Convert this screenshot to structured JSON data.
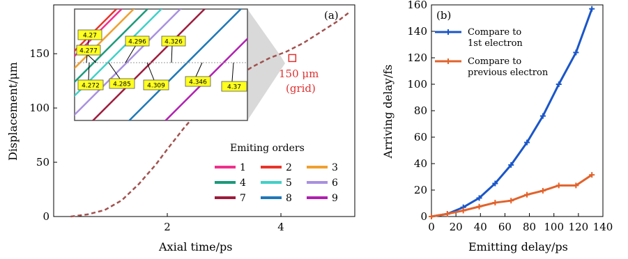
{
  "chart_data": [
    {
      "type": "line",
      "panel_label": "(a)",
      "xlabel": "Axial time/ps",
      "ylabel": "Displacement/μm",
      "xlim": [
        0,
        5.3
      ],
      "ylim": [
        0,
        195
      ],
      "xticks": [
        2,
        4
      ],
      "yticks": [
        0,
        50,
        100,
        150
      ],
      "trajectory": {
        "color": "#a0524f",
        "x": [
          0.3,
          0.6,
          0.9,
          1.2,
          1.5,
          1.8,
          2.0,
          2.3,
          2.6,
          2.9,
          3.2,
          3.5,
          3.8,
          4.1,
          4.4,
          4.7,
          5.0,
          5.2
        ],
        "y": [
          0,
          2,
          6,
          15,
          30,
          48,
          62,
          82,
          100,
          115,
          128,
          138,
          146,
          152,
          160,
          170,
          180,
          188
        ]
      },
      "marker": {
        "x": 4.2,
        "y": 146,
        "label_line1": "150 μm",
        "label_line2": "(grid)",
        "color": "#e03030"
      },
      "legend": {
        "title": "Emiting orders",
        "placement": "lower-right",
        "entries": [
          {
            "label": "1",
            "color": "#f0308c"
          },
          {
            "label": "2",
            "color": "#e8342a"
          },
          {
            "label": "3",
            "color": "#f0a030"
          },
          {
            "label": "4",
            "color": "#1a9a7a"
          },
          {
            "label": "5",
            "color": "#40d0c8"
          },
          {
            "label": "6",
            "color": "#a890e0"
          },
          {
            "label": "7",
            "color": "#9c1c3c"
          },
          {
            "label": "8",
            "color": "#1e78b8"
          },
          {
            "label": "9",
            "color": "#b020b0"
          }
        ]
      },
      "inset": {
        "lines": [
          {
            "color": "#e8342a",
            "u": 0.0
          },
          {
            "color": "#f0308c",
            "u": 0.03
          },
          {
            "color": "#f0a030",
            "u": 0.1
          },
          {
            "color": "#1a9a7a",
            "u": 0.18
          },
          {
            "color": "#40d0c8",
            "u": 0.26
          },
          {
            "color": "#a890e0",
            "u": 0.37
          },
          {
            "color": "#9c1c3c",
            "u": 0.51
          },
          {
            "color": "#1e78b8",
            "u": 0.72
          },
          {
            "color": "#b020b0",
            "u": 0.93
          }
        ],
        "top_labels": [
          "4.27",
          "4.277",
          "4.296",
          "4.326"
        ],
        "bottom_labels": [
          "4.272",
          "4.285",
          "4.309",
          "4.346",
          "4.37"
        ]
      }
    },
    {
      "type": "line",
      "panel_label": "(b)",
      "xlabel": "Emitting delay/ps",
      "ylabel": "Arriving delay/fs",
      "xlim": [
        0,
        140
      ],
      "ylim": [
        0,
        160
      ],
      "xticks": [
        0,
        20,
        40,
        60,
        80,
        100,
        120,
        140
      ],
      "yticks": [
        0,
        20,
        40,
        60,
        80,
        100,
        120,
        140,
        160
      ],
      "legend_placement": "top-left",
      "series": [
        {
          "name_line1": "Compare to",
          "name_line2": "1st electron",
          "color": "#1a56c8",
          "x": [
            0,
            13,
            26,
            39,
            52,
            65,
            78,
            91,
            104,
            118,
            131
          ],
          "y": [
            0,
            2,
            7,
            14,
            25,
            39,
            56,
            76,
            100,
            124,
            157
          ]
        },
        {
          "name_line1": "Compare to",
          "name_line2": "previous electron",
          "color": "#e2622a",
          "x": [
            0,
            13,
            26,
            39,
            52,
            65,
            78,
            91,
            104,
            118,
            131
          ],
          "y": [
            0,
            2,
            4.5,
            7.5,
            10.5,
            12,
            16.5,
            19.5,
            23.5,
            23.5,
            31.5
          ]
        }
      ]
    }
  ]
}
